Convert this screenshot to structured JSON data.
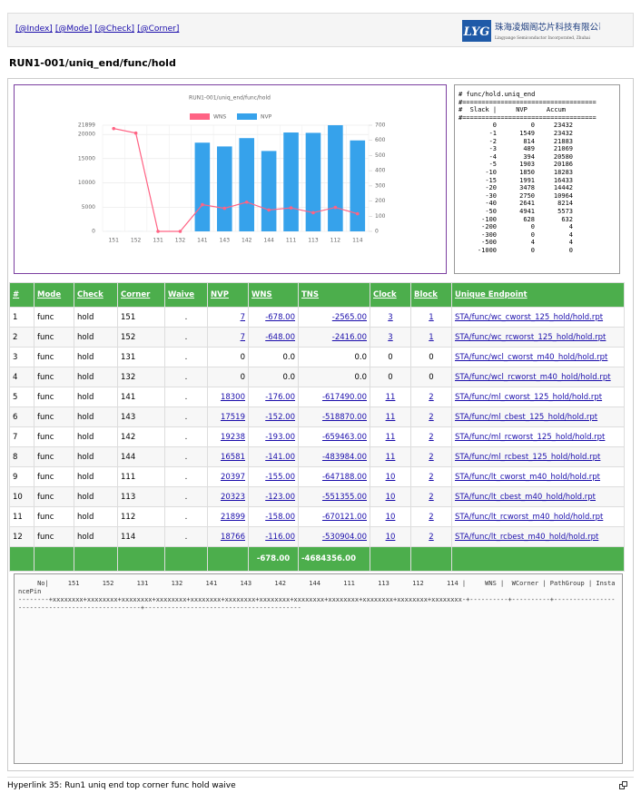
{
  "nav": [
    "[@Index]",
    "[@Mode]",
    "[@Check]",
    "[@Corner]"
  ],
  "logo": {
    "mark": "LYG",
    "name": "珠海凌烟阁芯片科技有限公司",
    "subtitle": "Lingyange Semiconductor Incorporated, Zhuhai"
  },
  "heading": "RUN1-001/uniq_end/func/hold",
  "chart_data": {
    "type": "bar",
    "title": "RUN1-001/uniq_end/func/hold",
    "categories": [
      "151",
      "152",
      "131",
      "132",
      "141",
      "143",
      "142",
      "144",
      "111",
      "113",
      "112",
      "114"
    ],
    "series": [
      {
        "name": "WNS",
        "type": "line",
        "axis": "y2",
        "color": "#ff6384",
        "values": [
          678,
          648,
          0,
          0,
          176,
          152,
          193,
          141,
          155,
          123,
          158,
          116
        ]
      },
      {
        "name": "NVP",
        "type": "bar",
        "color": "#36a2eb",
        "values": [
          7,
          7,
          0,
          0,
          18300,
          17519,
          19238,
          16581,
          20397,
          20323,
          21899,
          18766
        ]
      }
    ],
    "ylim": [
      0,
      21899
    ],
    "yticks": [
      0,
      5000,
      10000,
      15000,
      20000,
      21899
    ],
    "y2lim": [
      0,
      700
    ],
    "y2ticks": [
      0,
      100,
      200,
      300,
      400,
      500,
      600,
      700
    ],
    "grid": true
  },
  "side_report": {
    "title": "# func/hold.uniq_end",
    "rule": "#===================================",
    "header": "#  Slack |     NVP     Accum",
    "rows": [
      [
        "0",
        "0",
        "23432"
      ],
      [
        "-1",
        "1549",
        "23432"
      ],
      [
        "-2",
        "814",
        "21883"
      ],
      [
        "-3",
        "489",
        "21069"
      ],
      [
        "-4",
        "394",
        "20580"
      ],
      [
        "-5",
        "1903",
        "20186"
      ],
      [
        "-10",
        "1850",
        "18283"
      ],
      [
        "-15",
        "1991",
        "16433"
      ],
      [
        "-20",
        "3478",
        "14442"
      ],
      [
        "-30",
        "2750",
        "10964"
      ],
      [
        "-40",
        "2641",
        "8214"
      ],
      [
        "-50",
        "4941",
        "5573"
      ],
      [
        "-100",
        "628",
        "632"
      ],
      [
        "-200",
        "0",
        "4"
      ],
      [
        "-300",
        "0",
        "4"
      ],
      [
        "-500",
        "4",
        "4"
      ],
      [
        "-1000",
        "0",
        "0"
      ]
    ]
  },
  "table": {
    "columns": [
      "#",
      "Mode",
      "Check",
      "Corner",
      "Waive",
      "NVP",
      "WNS",
      "TNS",
      "Clock",
      "Block",
      "Unique Endpoint"
    ],
    "rows": [
      [
        "1",
        "func",
        "hold",
        "151",
        ".",
        "7",
        "-678.00",
        "-2565.00",
        "3",
        "1",
        "STA/func/wc_cworst_125_hold/hold.rpt"
      ],
      [
        "2",
        "func",
        "hold",
        "152",
        ".",
        "7",
        "-648.00",
        "-2416.00",
        "3",
        "1",
        "STA/func/wc_rcworst_125_hold/hold.rpt"
      ],
      [
        "3",
        "func",
        "hold",
        "131",
        ".",
        "0",
        "0.0",
        "0.0",
        "0",
        "0",
        "STA/func/wcl_cworst_m40_hold/hold.rpt"
      ],
      [
        "4",
        "func",
        "hold",
        "132",
        ".",
        "0",
        "0.0",
        "0.0",
        "0",
        "0",
        "STA/func/wcl_rcworst_m40_hold/hold.rpt"
      ],
      [
        "5",
        "func",
        "hold",
        "141",
        ".",
        "18300",
        "-176.00",
        "-617490.00",
        "11",
        "2",
        "STA/func/ml_cworst_125_hold/hold.rpt"
      ],
      [
        "6",
        "func",
        "hold",
        "143",
        ".",
        "17519",
        "-152.00",
        "-518870.00",
        "11",
        "2",
        "STA/func/ml_cbest_125_hold/hold.rpt"
      ],
      [
        "7",
        "func",
        "hold",
        "142",
        ".",
        "19238",
        "-193.00",
        "-659463.00",
        "11",
        "2",
        "STA/func/ml_rcworst_125_hold/hold.rpt"
      ],
      [
        "8",
        "func",
        "hold",
        "144",
        ".",
        "16581",
        "-141.00",
        "-483984.00",
        "11",
        "2",
        "STA/func/ml_rcbest_125_hold/hold.rpt"
      ],
      [
        "9",
        "func",
        "hold",
        "111",
        ".",
        "20397",
        "-155.00",
        "-647188.00",
        "10",
        "2",
        "STA/func/lt_cworst_m40_hold/hold.rpt"
      ],
      [
        "10",
        "func",
        "hold",
        "113",
        ".",
        "20323",
        "-123.00",
        "-551355.00",
        "10",
        "2",
        "STA/func/lt_cbest_m40_hold/hold.rpt"
      ],
      [
        "11",
        "func",
        "hold",
        "112",
        ".",
        "21899",
        "-158.00",
        "-670121.00",
        "10",
        "2",
        "STA/func/lt_rcworst_m40_hold/hold.rpt"
      ],
      [
        "12",
        "func",
        "hold",
        "114",
        ".",
        "18766",
        "-116.00",
        "-530904.00",
        "10",
        "2",
        "STA/func/lt_rcbest_m40_hold/hold.rpt"
      ]
    ],
    "totals": {
      "wns": "-678.00",
      "tns": "-4684356.00"
    }
  },
  "matrix": {
    "header": "     No|     151      152      131      132      141      143      142      144      111      113      112      114 |     WNS |  WCorner | PathGroup | InstancePin",
    "rule": "--------+xxxxxxxx+xxxxxxxx+xxxxxxxx+xxxxxxxx+xxxxxxxx+xxxxxxxx+xxxxxxxx+xxxxxxxx+xxxxxxxx+xxxxxxxx+xxxxxxxx+xxxxxxxx-+----------+----------+------------------------------------------------+-----------------------------------------"
  },
  "caption": "Hyperlink 35: Run1 uniq end top corner func hold waive"
}
